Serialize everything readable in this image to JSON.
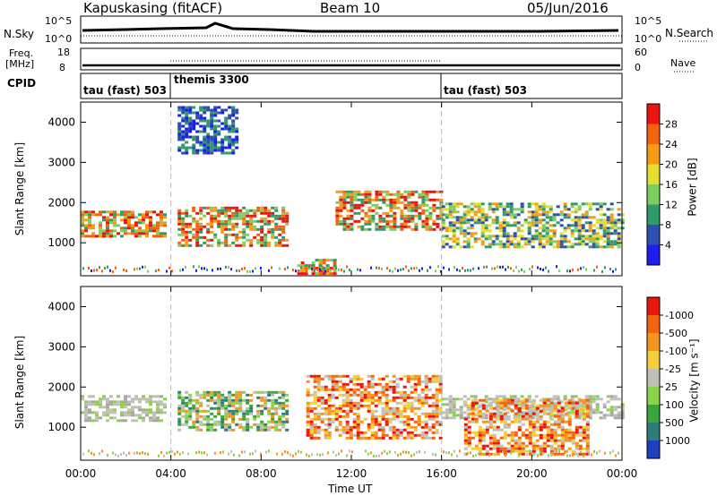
{
  "header": {
    "station": "Kapuskasing (fitACF)",
    "beam": "Beam 10",
    "date": "05/Jun/2016"
  },
  "top_panels": {
    "nsky_label": "N.Sky",
    "nsky_ticks": [
      "10^5",
      "10^0"
    ],
    "nsearch_label": "N.Search",
    "nsearch_ticks": [
      "10^5",
      "10^0"
    ],
    "freq_label": "Freq.",
    "freq_unit": "[MHz]",
    "freq_ticks": [
      "18",
      "8"
    ],
    "nave_label": "Nave",
    "nave_ticks": [
      "60",
      "0"
    ],
    "cpid_label": "CPID",
    "cpid_segments": [
      {
        "label": "tau (fast) 503",
        "start": 0,
        "end": 4
      },
      {
        "label": "themis 3300",
        "start": 4,
        "end": 16
      },
      {
        "label": "tau (fast) 503",
        "start": 16,
        "end": 24
      }
    ]
  },
  "chart_data": [
    {
      "type": "heatmap",
      "ylabel": "Slant Range [km]",
      "xlim": [
        0,
        24
      ],
      "ylim": [
        180,
        4500
      ],
      "yticks": [
        "1000",
        "2000",
        "3000",
        "4000"
      ],
      "colorbar": {
        "label": "Power [dB]",
        "ticks": [
          "4",
          "8",
          "12",
          "16",
          "20",
          "24",
          "28"
        ],
        "colors": [
          "#1d1df0",
          "#2d50b0",
          "#2f9a6a",
          "#7ccf5e",
          "#e7dc2f",
          "#f59b14",
          "#f2620f",
          "#e8160f"
        ]
      },
      "bands": [
        {
          "x": [
            0,
            3.8
          ],
          "range": [
            1150,
            1800
          ],
          "level": "high"
        },
        {
          "x": [
            4.3,
            9.2
          ],
          "range": [
            900,
            1900
          ],
          "level": "high"
        },
        {
          "x": [
            9.6,
            11.2
          ],
          "range": [
            250,
            600
          ],
          "level": "high"
        },
        {
          "x": [
            11.3,
            16
          ],
          "range": [
            1300,
            2300
          ],
          "level": "high"
        },
        {
          "x": [
            16,
            24
          ],
          "range": [
            900,
            2000
          ],
          "level": "medium"
        },
        {
          "x": [
            4.3,
            7
          ],
          "range": [
            3200,
            4400
          ],
          "level": "low"
        }
      ]
    },
    {
      "type": "heatmap",
      "ylabel": "Slant Range [km]",
      "xlabel": "Time UT",
      "xlim": [
        0,
        24
      ],
      "ylim": [
        180,
        4500
      ],
      "yticks": [
        "1000",
        "2000",
        "3000",
        "4000"
      ],
      "xticks": [
        "00:00",
        "04:00",
        "08:00",
        "12:00",
        "16:00",
        "20:00",
        "00:00"
      ],
      "colorbar": {
        "label": "Velocity [m s⁻¹]",
        "ticks": [
          "1000",
          "500",
          "100",
          "25",
          "-25",
          "-100",
          "-500",
          "-1000"
        ],
        "colors": [
          "#1f3fbf",
          "#2d7d7a",
          "#3aa53a",
          "#8bd24a",
          "#c0c0b8",
          "#f5cf3a",
          "#f5941e",
          "#f2620f",
          "#e8160f"
        ]
      },
      "bands": [
        {
          "x": [
            0,
            3.8
          ],
          "range": [
            1150,
            1800
          ],
          "level": "ground"
        },
        {
          "x": [
            4.3,
            9.2
          ],
          "range": [
            900,
            1900
          ],
          "level": "positive"
        },
        {
          "x": [
            10,
            16
          ],
          "range": [
            700,
            2300
          ],
          "level": "negative"
        },
        {
          "x": [
            16,
            24
          ],
          "range": [
            1200,
            1800
          ],
          "level": "ground"
        },
        {
          "x": [
            17,
            22.5
          ],
          "range": [
            300,
            1700
          ],
          "level": "negative"
        }
      ]
    }
  ]
}
